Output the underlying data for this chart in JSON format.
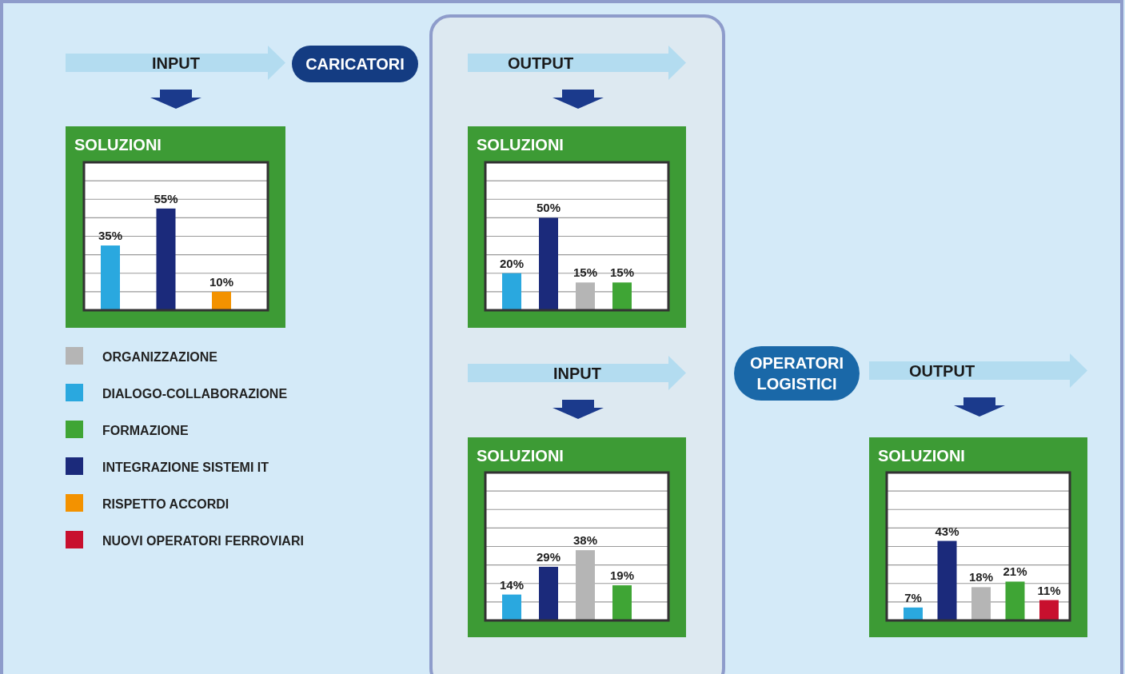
{
  "chart_data": [
    {
      "type": "bar",
      "title": "SOLUZIONI",
      "categories": [
        null,
        null,
        null
      ],
      "ylim": [
        0,
        80
      ],
      "yticks": [
        {
          "value": 0,
          "label": null
        },
        {
          "value": 10,
          "label": null
        },
        {
          "value": 20,
          "label": null
        },
        {
          "value": 30,
          "label": null
        },
        {
          "value": 40,
          "label": null
        },
        {
          "value": 50,
          "label": null
        },
        {
          "value": 60,
          "label": null
        },
        {
          "value": 70,
          "label": null
        },
        {
          "value": 80,
          "label": null
        }
      ],
      "grid": "y",
      "values": [
        35,
        55,
        10
      ],
      "value_labels": [
        "35%",
        "55%",
        "10%"
      ],
      "colors": [
        "#2aa8df",
        "#1b2a7b",
        "#f39200"
      ]
    },
    {
      "type": "bar",
      "title": "SOLUZIONI",
      "categories": [
        null,
        null,
        null,
        null
      ],
      "ylim": [
        0,
        80
      ],
      "yticks": [
        {
          "value": 0,
          "label": null
        },
        {
          "value": 10,
          "label": null
        },
        {
          "value": 20,
          "label": null
        },
        {
          "value": 30,
          "label": null
        },
        {
          "value": 40,
          "label": null
        },
        {
          "value": 50,
          "label": null
        },
        {
          "value": 60,
          "label": null
        },
        {
          "value": 70,
          "label": null
        },
        {
          "value": 80,
          "label": null
        }
      ],
      "grid": "y",
      "values": [
        20,
        50,
        15,
        15
      ],
      "value_labels": [
        "20%",
        "50%",
        "15%",
        "15%"
      ],
      "colors": [
        "#2aa8df",
        "#1b2a7b",
        "#b5b5b5",
        "#3fa535"
      ]
    },
    {
      "type": "bar",
      "title": "SOLUZIONI",
      "categories": [
        null,
        null,
        null,
        null
      ],
      "ylim": [
        0,
        80
      ],
      "yticks": [
        {
          "value": 0,
          "label": null
        },
        {
          "value": 10,
          "label": null
        },
        {
          "value": 20,
          "label": null
        },
        {
          "value": 30,
          "label": null
        },
        {
          "value": 40,
          "label": null
        },
        {
          "value": 50,
          "label": null
        },
        {
          "value": 60,
          "label": null
        },
        {
          "value": 70,
          "label": null
        },
        {
          "value": 80,
          "label": null
        }
      ],
      "grid": "y",
      "values": [
        14,
        29,
        38,
        19
      ],
      "value_labels": [
        "14%",
        "29%",
        "38%",
        "19%"
      ],
      "colors": [
        "#2aa8df",
        "#1b2a7b",
        "#b5b5b5",
        "#3fa535"
      ]
    },
    {
      "type": "bar",
      "title": "SOLUZIONI",
      "categories": [
        null,
        null,
        null,
        null,
        null
      ],
      "ylim": [
        0,
        80
      ],
      "yticks": [
        {
          "value": 0,
          "label": null
        },
        {
          "value": 10,
          "label": null
        },
        {
          "value": 20,
          "label": null
        },
        {
          "value": 30,
          "label": null
        },
        {
          "value": 40,
          "label": null
        },
        {
          "value": 50,
          "label": null
        },
        {
          "value": 60,
          "label": null
        },
        {
          "value": 70,
          "label": null
        },
        {
          "value": 80,
          "label": null
        }
      ],
      "grid": "y",
      "values": [
        7,
        43,
        18,
        21,
        11
      ],
      "value_labels": [
        "7%",
        "43%",
        "18%",
        "21%",
        "11%"
      ],
      "colors": [
        "#2aa8df",
        "#1b2a7b",
        "#b5b5b5",
        "#3fa535",
        "#c8102e"
      ]
    },
    {
      "type": "other",
      "annotations": [
        "INPUT",
        "CARICATORI",
        "OUTPUT",
        "INPUT",
        "OPERATORI LOGISTICI",
        "OUTPUT"
      ]
    },
    {
      "type": "other",
      "colors": [
        "#b5b5b5",
        "#2aa8df",
        "#3fa535",
        "#1b2a7b",
        "#f39200",
        "#c8102e"
      ],
      "annotations": [
        "ORGANIZZAZIONE",
        "DIALOGO-COLLABORAZIONE",
        "FORMAZIONE",
        "INTEGRAZIONE SISTEMI IT",
        "RISPETTO ACCORDI",
        "NUOVI OPERATORI FERROVIARI"
      ]
    }
  ]
}
